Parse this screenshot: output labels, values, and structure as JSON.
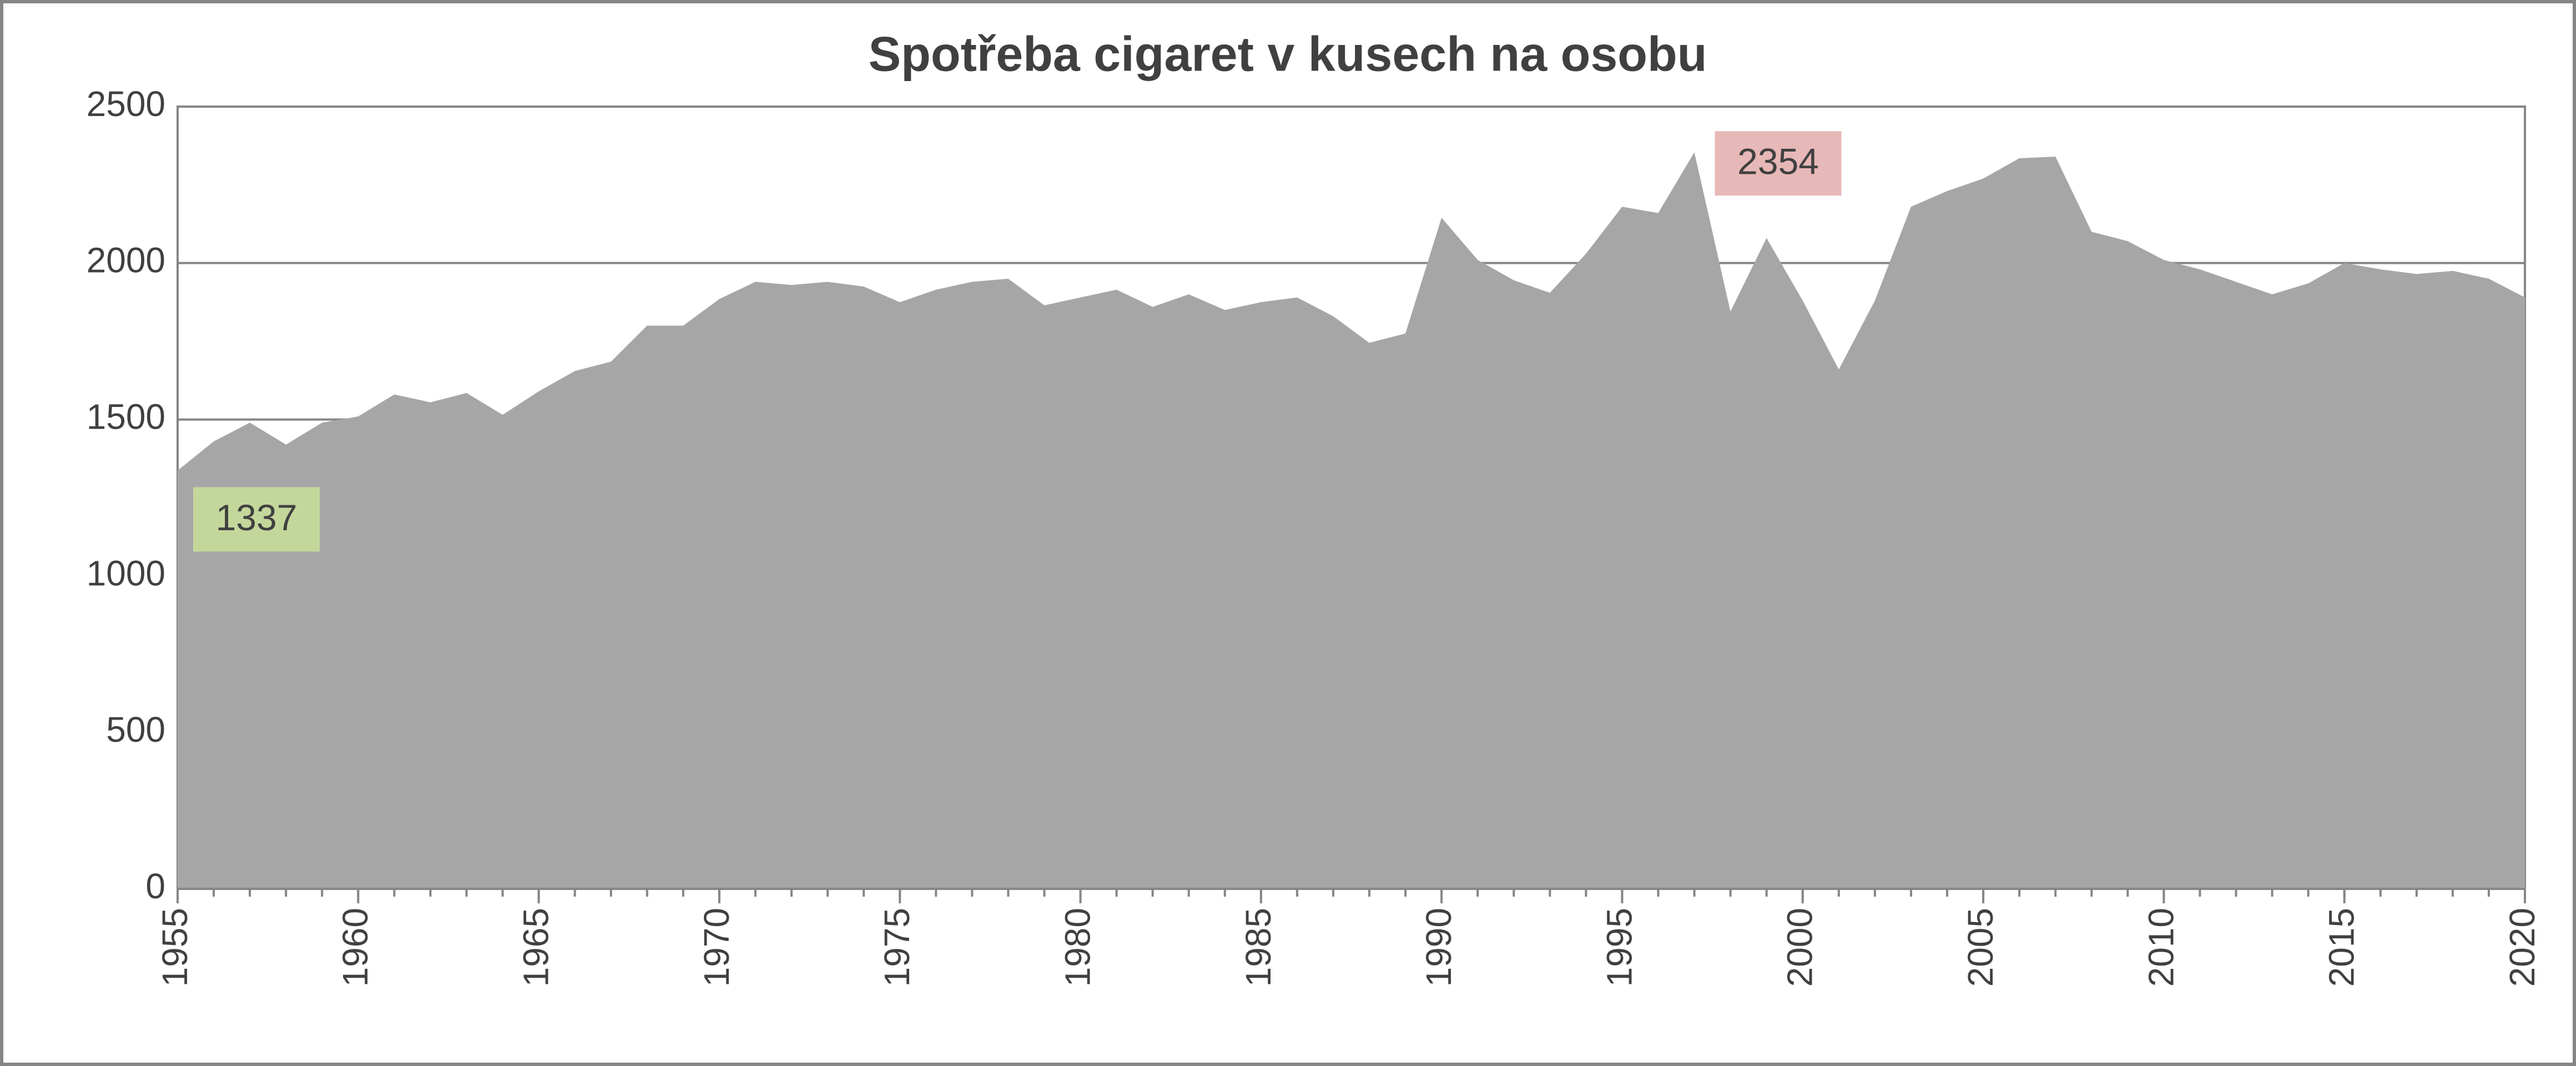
{
  "chart_data": {
    "type": "area",
    "title": "Spotřeba cigaret v kusech  na osobu",
    "x": [
      1955,
      1956,
      1957,
      1958,
      1959,
      1960,
      1961,
      1962,
      1963,
      1964,
      1965,
      1966,
      1967,
      1968,
      1969,
      1970,
      1971,
      1972,
      1973,
      1974,
      1975,
      1976,
      1977,
      1978,
      1979,
      1980,
      1981,
      1982,
      1983,
      1984,
      1985,
      1986,
      1987,
      1988,
      1989,
      1990,
      1991,
      1992,
      1993,
      1994,
      1995,
      1996,
      1997,
      1998,
      1999,
      2000,
      2001,
      2002,
      2003,
      2004,
      2005,
      2006,
      2007,
      2008,
      2009,
      2010,
      2011,
      2012,
      2013,
      2014,
      2015,
      2016,
      2017,
      2018,
      2019,
      2020
    ],
    "values": [
      1337,
      1430,
      1490,
      1420,
      1490,
      1510,
      1580,
      1555,
      1585,
      1515,
      1590,
      1655,
      1685,
      1800,
      1800,
      1885,
      1940,
      1930,
      1940,
      1925,
      1875,
      1915,
      1940,
      1950,
      1865,
      1890,
      1915,
      1860,
      1900,
      1850,
      1875,
      1890,
      1830,
      1745,
      1775,
      2145,
      2010,
      1945,
      1905,
      2030,
      2180,
      2160,
      2354,
      1845,
      2080,
      1880,
      1660,
      1880,
      2180,
      2230,
      2270,
      2335,
      2340,
      2100,
      2070,
      2010,
      1980,
      1940,
      1900,
      1935,
      2000,
      1980,
      1965,
      1975,
      1950,
      1890
    ],
    "color": "#a6a6a6",
    "xlim": [
      1955,
      2020
    ],
    "xticks": [
      1955,
      1960,
      1965,
      1970,
      1975,
      1980,
      1985,
      1990,
      1995,
      2000,
      2005,
      2010,
      2015,
      2020
    ],
    "ylim": [
      0,
      2500
    ],
    "yticks": [
      0,
      500,
      1000,
      1500,
      2000,
      2500
    ],
    "grid": true,
    "annotations": [
      {
        "x": 1955,
        "color": "#c4d79b"
      },
      {
        "x": 1997,
        "color": "#e6b8b7"
      }
    ]
  }
}
